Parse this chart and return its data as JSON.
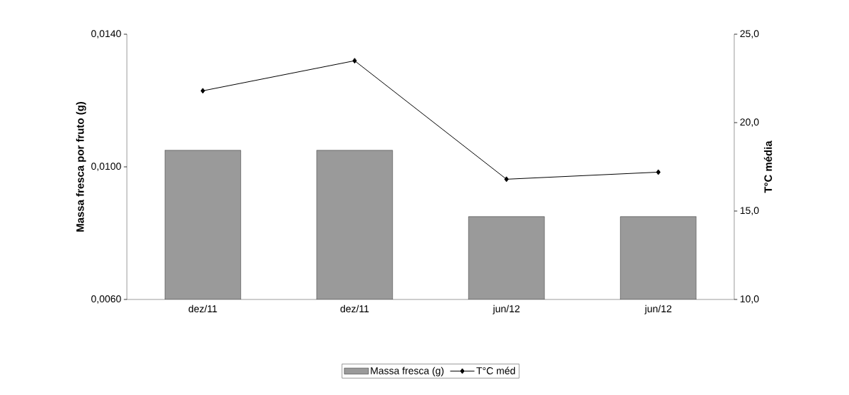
{
  "chart_data": {
    "type": "bar",
    "ylabel": "Massa fresca por fruto (g)",
    "y2label": "T°C média",
    "categories": [
      "dez/11",
      "dez/11",
      "jun/12",
      "jun/12"
    ],
    "series": [
      {
        "name": "Massa fresca (g)",
        "color": "#9a9a9a",
        "values": [
          0.0105,
          0.0105,
          0.0085,
          0.0085
        ]
      },
      {
        "name": "T°C méd",
        "type": "line",
        "axis": "y2",
        "color": "#000000",
        "marker": "diamond",
        "values": [
          21.8,
          23.5,
          16.8,
          17.2
        ]
      }
    ],
    "ylim": [
      0.006,
      0.014
    ],
    "yticks": [
      {
        "value": 0.006,
        "label": "0,0060"
      },
      {
        "value": 0.01,
        "label": "0,0100"
      },
      {
        "value": 0.014,
        "label": "0,0140"
      }
    ],
    "y2lim": [
      10,
      25
    ],
    "y2ticks": [
      {
        "value": 10,
        "label": "10,0"
      },
      {
        "value": 15,
        "label": "15,0"
      },
      {
        "value": 20,
        "label": "20,0"
      },
      {
        "value": 25,
        "label": "25,0"
      }
    ],
    "legend": "bottom"
  }
}
